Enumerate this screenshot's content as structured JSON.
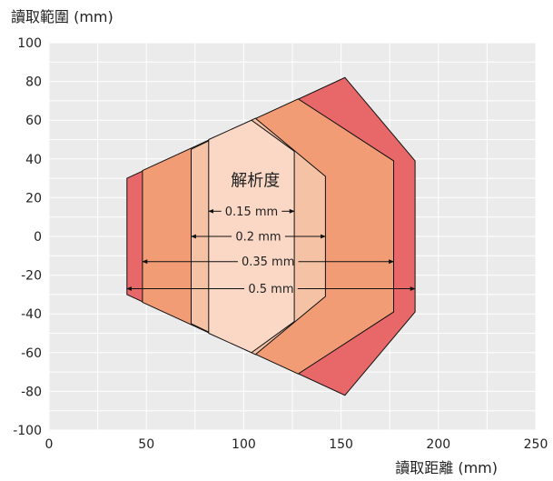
{
  "chart_data": {
    "type": "area",
    "ylabel": "讀取範圍 (mm)",
    "xlabel": "讀取距離 (mm)",
    "xlim": [
      0,
      250
    ],
    "ylim": [
      -100,
      100
    ],
    "xticks": [
      0,
      50,
      100,
      150,
      200,
      250
    ],
    "yticks": [
      100,
      80,
      60,
      40,
      20,
      0,
      -20,
      -40,
      -60,
      -80,
      -100
    ],
    "grid": true,
    "annotation": "解析度",
    "colors": {
      "plot_bg": "#ebebeb",
      "grid": "#ffffff",
      "zone_0.5": "#e8686a",
      "zone_0.35": "#f29c75",
      "zone_0.2": "#f5c2a6",
      "zone_0.15": "#fad8c5",
      "outline": "#111111"
    },
    "series": [
      {
        "name": "0.5 mm",
        "polygon": [
          [
            40,
            30
          ],
          [
            152,
            82
          ],
          [
            188,
            39
          ],
          [
            188,
            -39
          ],
          [
            152,
            -82
          ],
          [
            40,
            -30
          ]
        ]
      },
      {
        "name": "0.35 mm",
        "polygon": [
          [
            48,
            34
          ],
          [
            128,
            71
          ],
          [
            177,
            39
          ],
          [
            177,
            -39
          ],
          [
            128,
            -71
          ],
          [
            48,
            -34
          ]
        ]
      },
      {
        "name": "0.2 mm",
        "polygon": [
          [
            73,
            45
          ],
          [
            106,
            61
          ],
          [
            142,
            31
          ],
          [
            142,
            -31
          ],
          [
            106,
            -61
          ],
          [
            73,
            -45
          ]
        ]
      },
      {
        "name": "0.15 mm",
        "polygon": [
          [
            82,
            50
          ],
          [
            104,
            60
          ],
          [
            126,
            44
          ],
          [
            126,
            -44
          ],
          [
            104,
            -60
          ],
          [
            82,
            -50
          ]
        ]
      }
    ],
    "arrows": [
      {
        "label": "0.15 mm",
        "x1": 82,
        "x2": 126,
        "y": 13
      },
      {
        "label": "0.2 mm",
        "x1": 73,
        "x2": 142,
        "y": 0
      },
      {
        "label": "0.35 mm",
        "x1": 48,
        "x2": 177,
        "y": -13
      },
      {
        "label": "0.5 mm",
        "x1": 40,
        "x2": 188,
        "y": -27
      }
    ],
    "annotation_pos": [
      106,
      26
    ]
  }
}
